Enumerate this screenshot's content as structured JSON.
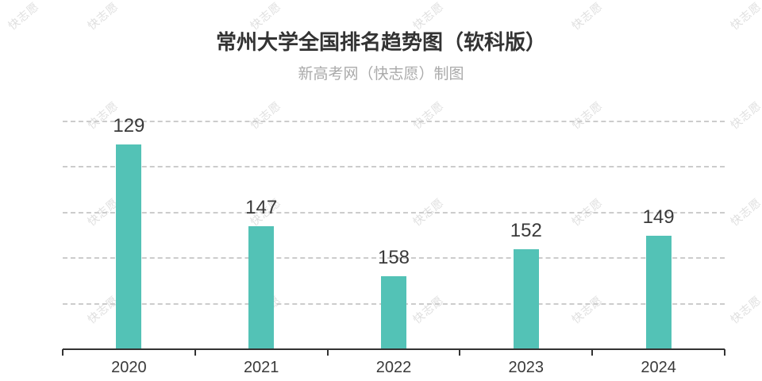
{
  "header": {
    "title": "常州大学全国排名趋势图（软科版）",
    "subtitle": "新高考网（快志愿）制图"
  },
  "watermark": {
    "text": "快志愿"
  },
  "colors": {
    "bar": "#53C2B6",
    "title_text": "#333333",
    "subtitle_text": "#aaaaaa",
    "value_label": "#3a3a3a",
    "axis": "#333333",
    "gridline": "#cccccc",
    "watermark": "#aaaaaa"
  },
  "chart_data": {
    "type": "bar",
    "title": "常州大学全国排名趋势图（软科版）",
    "subtitle": "新高考网（快志愿）制图",
    "categories": [
      "2020",
      "2021",
      "2022",
      "2023",
      "2024"
    ],
    "values": [
      129,
      147,
      158,
      152,
      149
    ],
    "xlabel": "",
    "ylabel": "",
    "ylim": [
      124,
      174
    ],
    "y_inverted": true,
    "y_axis_labels_visible": false,
    "gridline_values": [
      124,
      134,
      144,
      154,
      164
    ],
    "gridline_style": "dashed",
    "legend": "none",
    "value_labels_visible": true
  }
}
